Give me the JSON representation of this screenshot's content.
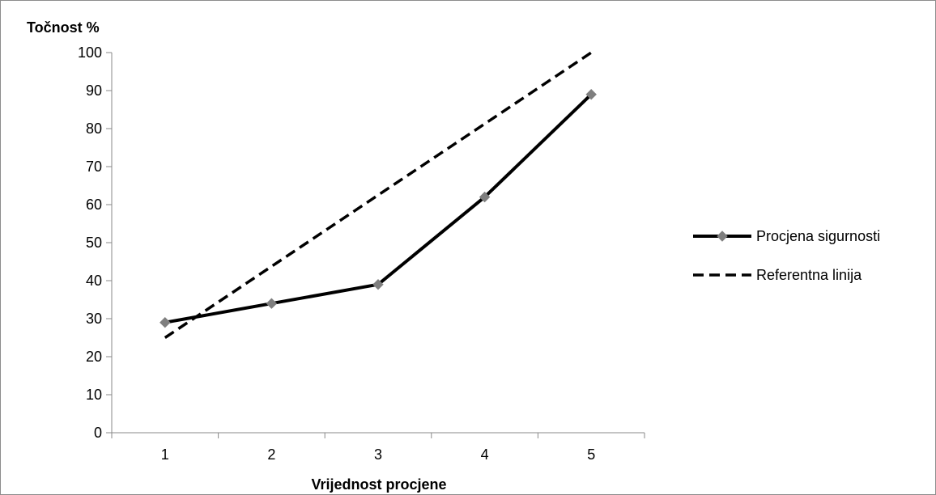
{
  "chart_data": {
    "type": "line",
    "title": "",
    "ylabel": "Točnost %",
    "xlabel": "Vrijednost procjene",
    "categories": [
      "1",
      "2",
      "3",
      "4",
      "5"
    ],
    "x": [
      1,
      2,
      3,
      4,
      5
    ],
    "ylim": [
      0,
      100
    ],
    "yticks": [
      0,
      10,
      20,
      30,
      40,
      50,
      60,
      70,
      80,
      90,
      100
    ],
    "grid": false,
    "legend_position": "right",
    "series": [
      {
        "name": "Procjena sigurnosti",
        "values": [
          29,
          34,
          39,
          62,
          89
        ],
        "line_style": "solid",
        "marker": "diamond",
        "line_color": "#000000",
        "marker_color": "#7f7f7f"
      },
      {
        "name": "Referentna linija",
        "values": [
          25,
          43.75,
          62.5,
          81.25,
          100
        ],
        "line_style": "dashed",
        "marker": "none",
        "line_color": "#000000"
      }
    ]
  }
}
